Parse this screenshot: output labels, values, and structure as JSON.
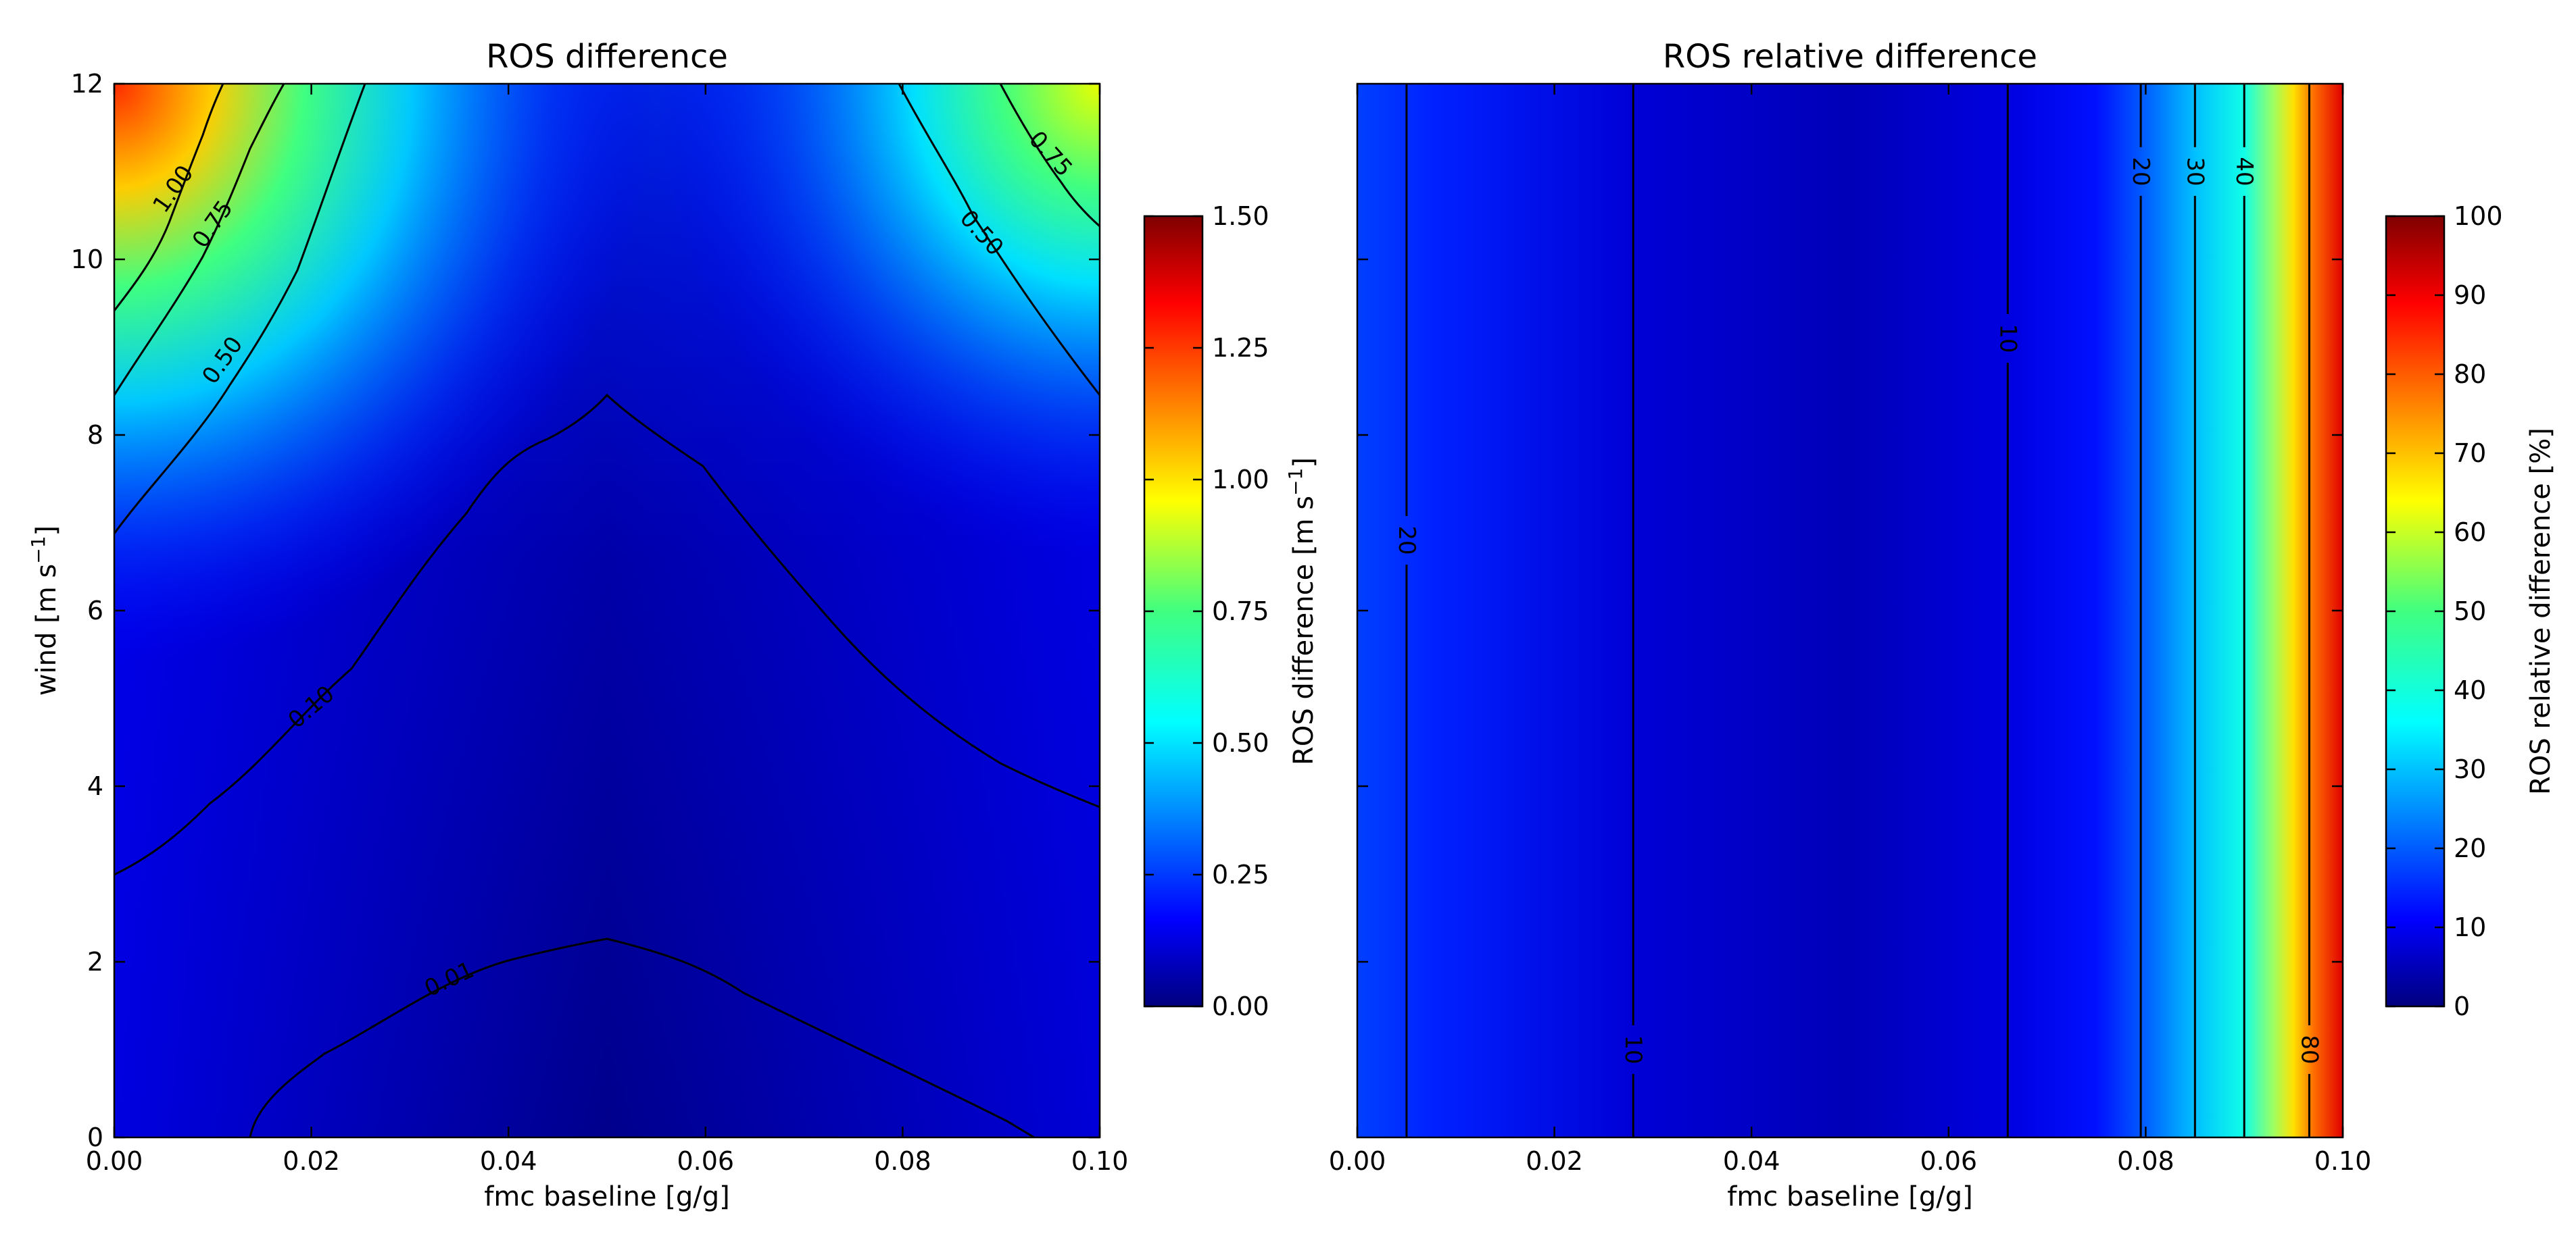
{
  "chart_data": [
    {
      "type": "heatmap",
      "title": "ROS difference",
      "xlabel": "fmc baseline [g/g]",
      "ylabel_main": "wind [m s",
      "ylabel_sup": "−1",
      "ylabel_end": "]",
      "xlim": [
        0.0,
        0.1
      ],
      "ylim": [
        0,
        12
      ],
      "x_ticks": [
        0.0,
        0.02,
        0.04,
        0.06,
        0.08,
        0.1
      ],
      "x_tick_labels": [
        "0.00",
        "0.02",
        "0.04",
        "0.06",
        "0.08",
        "0.10"
      ],
      "y_ticks": [
        0,
        2,
        4,
        6,
        8,
        10,
        12
      ],
      "y_tick_labels": [
        "0",
        "2",
        "4",
        "6",
        "8",
        "10",
        "12"
      ],
      "colormap": "jet",
      "colorbar": {
        "label_main": "ROS difference [m s",
        "label_sup": "−1",
        "label_end": "]",
        "range": [
          0,
          1.5
        ],
        "ticks": [
          0,
          0.25,
          0.5,
          0.75,
          1.0,
          1.25,
          1.5
        ],
        "tick_labels": [
          "0.00",
          "0.25",
          "0.50",
          "0.75",
          "1.00",
          "1.25",
          "1.50"
        ]
      },
      "contours": [
        {
          "level": 0.01,
          "label": "0.01"
        },
        {
          "level": 0.1,
          "label": "0.10"
        },
        {
          "level": 0.5,
          "label": "0.50"
        },
        {
          "level": 0.75,
          "label": "0.75"
        },
        {
          "level": 1.0,
          "label": "1.00"
        }
      ],
      "contour_label_positions": [
        {
          "label": "1.00",
          "x": 0.006,
          "y": 10.8
        },
        {
          "label": "0.75",
          "x": 0.01,
          "y": 10.4
        },
        {
          "label": "0.50",
          "x": 0.011,
          "y": 8.85
        },
        {
          "label": "0.10",
          "x": 0.02,
          "y": 4.9
        },
        {
          "label": "0.01",
          "x": 0.034,
          "y": 1.8
        },
        {
          "label": "0.75",
          "x": 0.095,
          "y": 11.2
        },
        {
          "label": "0.50",
          "x": 0.088,
          "y": 10.3
        }
      ],
      "grid": false
    },
    {
      "type": "heatmap",
      "title": "ROS relative difference",
      "xlabel": "fmc baseline [g/g]",
      "xlim": [
        0.0,
        0.1
      ],
      "ylim": [
        0,
        12
      ],
      "x_ticks": [
        0.0,
        0.02,
        0.04,
        0.06,
        0.08,
        0.1
      ],
      "x_tick_labels": [
        "0.00",
        "0.02",
        "0.04",
        "0.06",
        "0.08",
        "0.10"
      ],
      "colormap": "jet",
      "colorbar": {
        "label": "ROS relative difference [%]",
        "range": [
          0,
          100
        ],
        "ticks": [
          0,
          10,
          20,
          30,
          40,
          50,
          60,
          70,
          80,
          90,
          100
        ],
        "tick_labels": [
          "0",
          "10",
          "20",
          "30",
          "40",
          "50",
          "60",
          "70",
          "80",
          "90",
          "100"
        ]
      },
      "contour_lines": [
        {
          "x": 0.005,
          "label": "20",
          "label_y": 6.8
        },
        {
          "x": 0.028,
          "label": "10",
          "label_y": 1.0
        },
        {
          "x": 0.066,
          "label": "10",
          "label_y": 9.1
        },
        {
          "x": 0.0795,
          "label": "20",
          "label_y": 11.0
        },
        {
          "x": 0.085,
          "label": "30",
          "label_y": 11.0
        },
        {
          "x": 0.09,
          "label": "40",
          "label_y": 11.0
        },
        {
          "x": 0.0966,
          "label": "80",
          "label_y": 1.0
        }
      ],
      "grid": false
    }
  ]
}
